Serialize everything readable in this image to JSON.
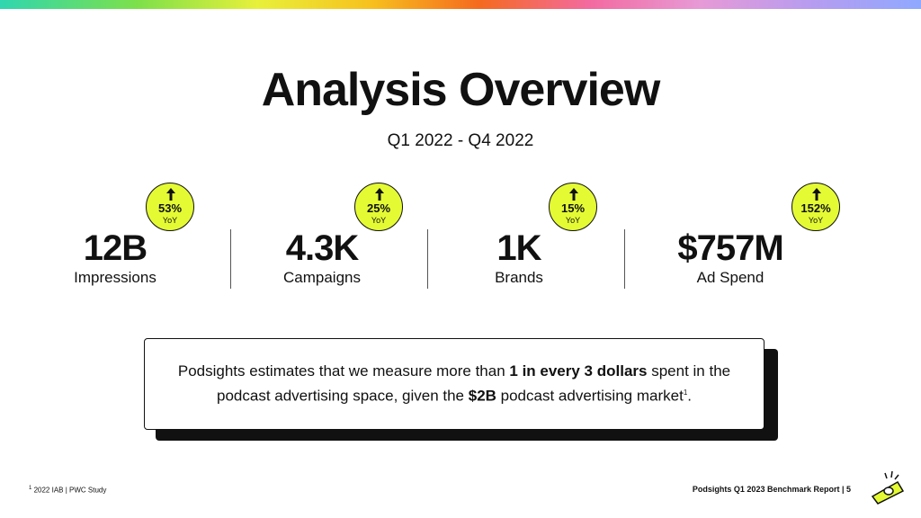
{
  "header": {
    "title": "Analysis Overview",
    "subtitle": "Q1 2022 - Q4 2022"
  },
  "stats": [
    {
      "value": "12B",
      "label": "Impressions",
      "badge_pct": "53%",
      "badge_sub": "YoY"
    },
    {
      "value": "4.3K",
      "label": "Campaigns",
      "badge_pct": "25%",
      "badge_sub": "YoY"
    },
    {
      "value": "1K",
      "label": "Brands",
      "badge_pct": "15%",
      "badge_sub": "YoY"
    },
    {
      "value": "$757M",
      "label": "Ad Spend",
      "badge_pct": "152%",
      "badge_sub": "YoY"
    }
  ],
  "callout": {
    "part1": "Podsights estimates that we measure more than ",
    "bold1": "1 in every 3 dollars",
    "part2": " spent in the podcast advertising space, given the ",
    "bold2": "$2B",
    "part3": " podcast advertising market",
    "sup": "1",
    "end": "."
  },
  "footer": {
    "footnote_mark": "1",
    "footnote_text": "2022 IAB | PWC Study",
    "report": "Podsights Q1 2023 Benchmark Report | 5"
  },
  "colors": {
    "badge": "#e4fb34",
    "text": "#111111",
    "background": "#ffffff"
  },
  "icons": [
    "up-arrow-icon",
    "podsights-logo"
  ]
}
